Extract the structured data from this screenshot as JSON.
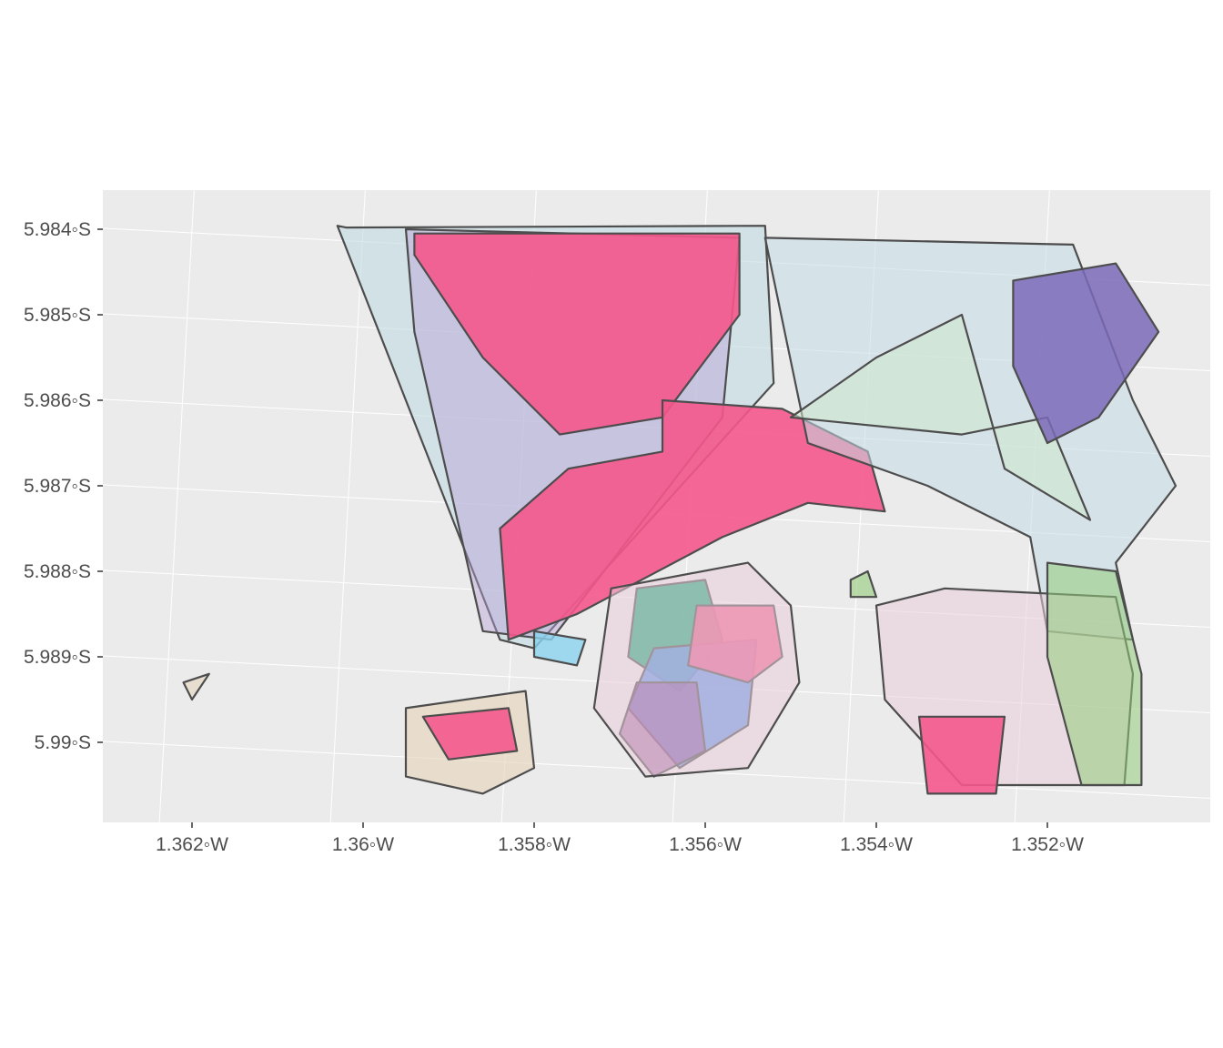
{
  "map": {
    "panel_background": "#ebebeb",
    "outline_color": "#4d4d4d",
    "y_axis_ticks": [
      "5.984◦S",
      "5.985◦S",
      "5.986◦S",
      "5.987◦S",
      "5.988◦S",
      "5.989◦S",
      "5.99◦S"
    ],
    "x_axis_ticks": [
      "1.362◦W",
      "1.36◦W",
      "1.358◦W",
      "1.356◦W",
      "1.354◦W",
      "1.352◦W"
    ]
  },
  "chart_data": {
    "type": "map",
    "projection": "graticule (lon/lat)",
    "xlim": [
      -1.363,
      -1.3505
    ],
    "ylim": [
      -5.9899,
      -5.9838
    ],
    "x_ticks": [
      -1.362,
      -1.36,
      -1.358,
      -1.356,
      -1.354,
      -1.352
    ],
    "y_ticks": [
      -5.984,
      -5.985,
      -5.986,
      -5.987,
      -5.988,
      -5.989,
      -5.99
    ],
    "grid": true,
    "legend": "none",
    "fill_colors": [
      "#f4588c",
      "#c2dbe3",
      "#cfe8cd",
      "#e8cdd9",
      "#b7a1d6",
      "#7b6ab8",
      "#00a06a",
      "#4f8ce8",
      "#8b3a8f",
      "#e6d4b8",
      "#93cc7a",
      "#8ad3ef"
    ],
    "polygons": [
      {
        "fill": "#c2dbe3",
        "opacity": 0.6,
        "points": [
          [
            -1.3602,
            -5.98398
          ],
          [
            -1.3553,
            -5.98396
          ],
          [
            -1.3552,
            -5.9858
          ],
          [
            -1.358,
            -5.9889
          ],
          [
            -1.3584,
            -5.9888
          ],
          [
            -1.3595,
            -5.986
          ],
          [
            -1.3603,
            -5.98396
          ]
        ]
      },
      {
        "fill": "#b7a1d6",
        "opacity": 0.45,
        "points": [
          [
            -1.3595,
            -5.984
          ],
          [
            -1.3556,
            -5.9841
          ],
          [
            -1.3558,
            -5.9862
          ],
          [
            -1.3578,
            -5.9888
          ],
          [
            -1.3586,
            -5.9887
          ],
          [
            -1.3594,
            -5.9852
          ]
        ]
      },
      {
        "fill": "#f4588c",
        "opacity": 0.9,
        "points": [
          [
            -1.3594,
            -5.98405
          ],
          [
            -1.3556,
            -5.98405
          ],
          [
            -1.3556,
            -5.985
          ],
          [
            -1.3565,
            -5.9862
          ],
          [
            -1.3577,
            -5.9864
          ],
          [
            -1.3586,
            -5.9855
          ],
          [
            -1.3594,
            -5.9843
          ]
        ]
      },
      {
        "fill": "#f4588c",
        "opacity": 0.9,
        "points": [
          [
            -1.3565,
            -5.986
          ],
          [
            -1.3551,
            -5.9861
          ],
          [
            -1.3541,
            -5.9866
          ],
          [
            -1.3539,
            -5.9873
          ],
          [
            -1.3548,
            -5.9872
          ],
          [
            -1.3558,
            -5.9876
          ],
          [
            -1.3575,
            -5.9885
          ],
          [
            -1.3583,
            -5.9888
          ],
          [
            -1.3584,
            -5.9875
          ],
          [
            -1.3576,
            -5.9868
          ],
          [
            -1.3565,
            -5.9866
          ]
        ]
      },
      {
        "fill": "#c2dbe3",
        "opacity": 0.55,
        "points": [
          [
            -1.3553,
            -5.9841
          ],
          [
            -1.3517,
            -5.98418
          ],
          [
            -1.351,
            -5.986
          ],
          [
            -1.3505,
            -5.987
          ],
          [
            -1.3512,
            -5.9879
          ],
          [
            -1.351,
            -5.9888
          ],
          [
            -1.352,
            -5.9887
          ],
          [
            -1.3522,
            -5.9876
          ],
          [
            -1.3534,
            -5.987
          ],
          [
            -1.3548,
            -5.9865
          ]
        ]
      },
      {
        "fill": "#cfe8cd",
        "opacity": 0.55,
        "points": [
          [
            -1.355,
            -5.9862
          ],
          [
            -1.354,
            -5.9855
          ],
          [
            -1.353,
            -5.985
          ],
          [
            -1.3525,
            -5.9868
          ],
          [
            -1.3515,
            -5.9874
          ],
          [
            -1.352,
            -5.9862
          ],
          [
            -1.353,
            -5.9864
          ]
        ]
      },
      {
        "fill": "#7b6ab8",
        "opacity": 0.85,
        "points": [
          [
            -1.3524,
            -5.9846
          ],
          [
            -1.3512,
            -5.9844
          ],
          [
            -1.3507,
            -5.9852
          ],
          [
            -1.3514,
            -5.9862
          ],
          [
            -1.352,
            -5.9865
          ],
          [
            -1.3524,
            -5.9856
          ]
        ]
      },
      {
        "fill": "#00a06a",
        "opacity": 0.85,
        "points": [
          [
            -1.3568,
            -5.9882
          ],
          [
            -1.356,
            -5.9881
          ],
          [
            -1.3558,
            -5.9888
          ],
          [
            -1.3563,
            -5.9894
          ],
          [
            -1.3569,
            -5.989
          ]
        ]
      },
      {
        "fill": "#4f8ce8",
        "opacity": 0.85,
        "points": [
          [
            -1.3566,
            -5.9889
          ],
          [
            -1.3554,
            -5.9888
          ],
          [
            -1.3555,
            -5.9898
          ],
          [
            -1.3563,
            -5.9903
          ],
          [
            -1.3569,
            -5.9896
          ]
        ]
      },
      {
        "fill": "#f4588c",
        "opacity": 0.9,
        "points": [
          [
            -1.3561,
            -5.9884
          ],
          [
            -1.3552,
            -5.9884
          ],
          [
            -1.3551,
            -5.989
          ],
          [
            -1.3555,
            -5.9893
          ],
          [
            -1.3562,
            -5.9891
          ]
        ]
      },
      {
        "fill": "#8b3a8f",
        "opacity": 0.6,
        "points": [
          [
            -1.3568,
            -5.9893
          ],
          [
            -1.3561,
            -5.9893
          ],
          [
            -1.356,
            -5.9901
          ],
          [
            -1.3566,
            -5.9904
          ],
          [
            -1.357,
            -5.9899
          ]
        ]
      },
      {
        "fill": "#e8cdd9",
        "opacity": 0.55,
        "points": [
          [
            -1.3571,
            -5.9882
          ],
          [
            -1.3555,
            -5.9879
          ],
          [
            -1.355,
            -5.9884
          ],
          [
            -1.3549,
            -5.9893
          ],
          [
            -1.3555,
            -5.9903
          ],
          [
            -1.3567,
            -5.9904
          ],
          [
            -1.3573,
            -5.9896
          ]
        ]
      },
      {
        "fill": "#e6d4b8",
        "opacity": 0.6,
        "points": [
          [
            -1.3595,
            -5.9896
          ],
          [
            -1.3581,
            -5.9894
          ],
          [
            -1.358,
            -5.9903
          ],
          [
            -1.3586,
            -5.9906
          ],
          [
            -1.3595,
            -5.9904
          ]
        ]
      },
      {
        "fill": "#f4588c",
        "opacity": 0.9,
        "points": [
          [
            -1.3593,
            -5.9897
          ],
          [
            -1.3583,
            -5.9896
          ],
          [
            -1.3582,
            -5.9901
          ],
          [
            -1.359,
            -5.9902
          ]
        ]
      },
      {
        "fill": "#e8cdd9",
        "opacity": 0.55,
        "points": [
          [
            -1.354,
            -5.9884
          ],
          [
            -1.3532,
            -5.9882
          ],
          [
            -1.3512,
            -5.9883
          ],
          [
            -1.351,
            -5.9892
          ],
          [
            -1.3511,
            -5.9905
          ],
          [
            -1.353,
            -5.9905
          ],
          [
            -1.3539,
            -5.9895
          ]
        ]
      },
      {
        "fill": "#93cc7a",
        "opacity": 0.55,
        "points": [
          [
            -1.352,
            -5.9879
          ],
          [
            -1.3512,
            -5.988
          ],
          [
            -1.3509,
            -5.9892
          ],
          [
            -1.3509,
            -5.9905
          ],
          [
            -1.3516,
            -5.9905
          ],
          [
            -1.352,
            -5.989
          ]
        ]
      },
      {
        "fill": "#f4588c",
        "opacity": 0.9,
        "points": [
          [
            -1.3535,
            -5.9897
          ],
          [
            -1.3525,
            -5.9897
          ],
          [
            -1.3526,
            -5.9906
          ],
          [
            -1.3534,
            -5.9906
          ]
        ]
      },
      {
        "fill": "#e6d4b8",
        "opacity": 0.55,
        "points": [
          [
            -1.3621,
            -5.9893
          ],
          [
            -1.3618,
            -5.9892
          ],
          [
            -1.362,
            -5.9895
          ]
        ]
      },
      {
        "fill": "#8ad3ef",
        "opacity": 0.8,
        "points": [
          [
            -1.358,
            -5.9887
          ],
          [
            -1.3574,
            -5.9888
          ],
          [
            -1.3575,
            -5.9891
          ],
          [
            -1.358,
            -5.989
          ]
        ]
      },
      {
        "fill": "#93cc7a",
        "opacity": 0.6,
        "points": [
          [
            -1.3543,
            -5.9881
          ],
          [
            -1.3541,
            -5.988
          ],
          [
            -1.354,
            -5.9883
          ],
          [
            -1.3543,
            -5.9883
          ]
        ]
      }
    ]
  }
}
